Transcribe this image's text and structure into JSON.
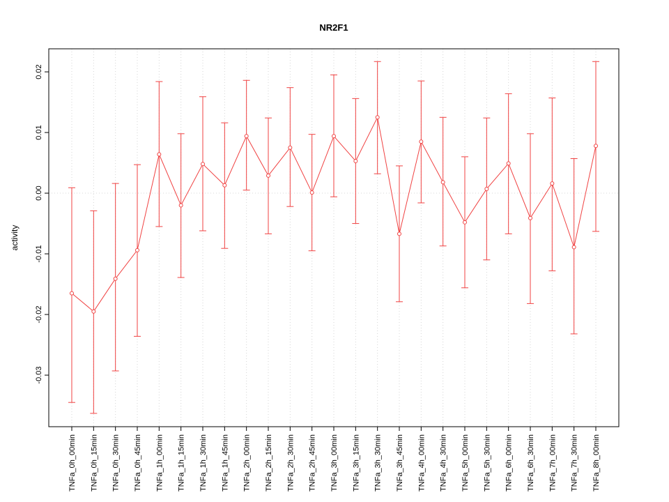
{
  "chart_data": {
    "type": "line",
    "title": "NR2F1",
    "xlabel": "",
    "ylabel": "activity",
    "ylim": [
      -0.0385,
      0.0238
    ],
    "yticks": [
      -0.03,
      -0.02,
      -0.01,
      0,
      0.01,
      0.02
    ],
    "grid": true,
    "legend": "none",
    "color": "#f04141",
    "grid_color": "#d4d4d4",
    "categories": [
      "TNFa_0h_00min",
      "TNFa_0h_15min",
      "TNFa_0h_30min",
      "TNFa_0h_45min",
      "TNFa_1h_00min",
      "TNFa_1h_15min",
      "TNFa_1h_30min",
      "TNFa_1h_45min",
      "TNFa_2h_00min",
      "TNFa_2h_15min",
      "TNFa_2h_30min",
      "TNFa_2h_45min",
      "TNFa_3h_00min",
      "TNFa_3h_15min",
      "TNFa_3h_30min",
      "TNFa_3h_45min",
      "TNFa_4h_00min",
      "TNFa_4h_30min",
      "TNFa_5h_00min",
      "TNFa_5h_30min",
      "TNFa_6h_00min",
      "TNFa_6h_30min",
      "TNFa_7h_00min",
      "TNFa_7h_30min",
      "TNFa_8h_00min"
    ],
    "series": [
      {
        "name": "mean",
        "values": [
          -0.0165,
          -0.0195,
          -0.0141,
          -0.0094,
          0.0064,
          -0.002,
          0.0048,
          0.0013,
          0.0094,
          0.0029,
          0.0075,
          0.0001,
          0.0094,
          0.0053,
          0.0125,
          -0.0067,
          0.0085,
          0.0018,
          -0.0048,
          0.0007,
          0.0049,
          -0.0041,
          0.0016,
          -0.0089,
          0.0078
        ]
      },
      {
        "name": "lower_ci",
        "values": [
          -0.0345,
          -0.0363,
          -0.0293,
          -0.0236,
          -0.0055,
          -0.0139,
          -0.0062,
          -0.0091,
          0.0005,
          -0.0067,
          -0.0022,
          -0.0095,
          -0.0006,
          -0.005,
          0.0032,
          -0.0179,
          -0.0016,
          -0.0087,
          -0.0156,
          -0.011,
          -0.0067,
          -0.0182,
          -0.0128,
          -0.0232,
          -0.0063
        ]
      },
      {
        "name": "upper_ci",
        "values": [
          0.0009,
          -0.0029,
          0.0016,
          0.0047,
          0.0184,
          0.0098,
          0.0159,
          0.0116,
          0.0186,
          0.0124,
          0.0174,
          0.0097,
          0.0195,
          0.0156,
          0.0217,
          0.0045,
          0.0185,
          0.0125,
          0.006,
          0.0124,
          0.0164,
          0.0098,
          0.0157,
          0.0057,
          0.0217
        ]
      }
    ]
  }
}
